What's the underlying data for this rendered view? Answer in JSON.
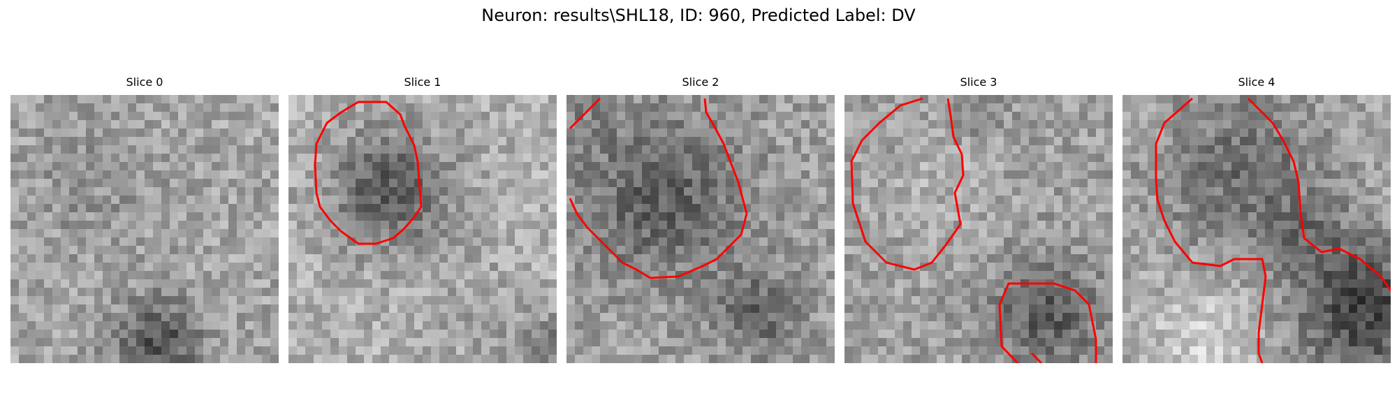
{
  "figure": {
    "title": "Neuron: results\\SHL18, ID: 960, Predicted Label: DV",
    "contour_color": "#ff0000",
    "colormap": "gray"
  },
  "panels": [
    {
      "title": "Slice 0",
      "has_contour": false
    },
    {
      "title": "Slice 1",
      "has_contour": true
    },
    {
      "title": "Slice 2",
      "has_contour": true
    },
    {
      "title": "Slice 3",
      "has_contour": true
    },
    {
      "title": "Slice 4",
      "has_contour": true
    }
  ]
}
